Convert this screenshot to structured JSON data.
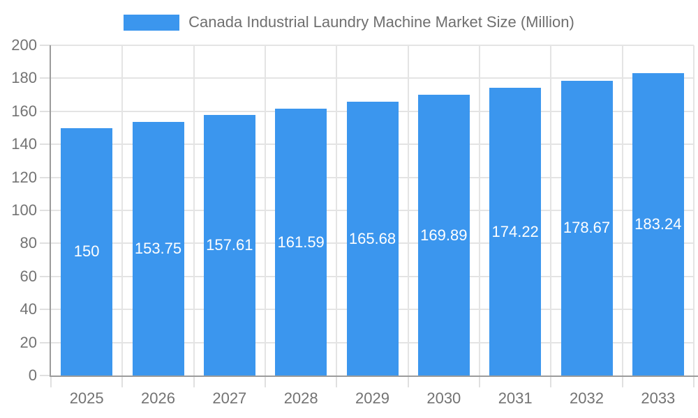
{
  "chart_data": {
    "type": "bar",
    "title": "Canada Industrial Laundry Machine Market Size (Million)",
    "series_name": "Canada Industrial Laundry Machine Market Size (Million)",
    "categories": [
      "2025",
      "2026",
      "2027",
      "2028",
      "2029",
      "2030",
      "2031",
      "2032",
      "2033"
    ],
    "values": [
      150,
      153.75,
      157.61,
      161.59,
      165.68,
      169.89,
      174.22,
      178.67,
      183.24
    ],
    "value_labels": [
      "150",
      "153.75",
      "157.61",
      "161.59",
      "165.68",
      "169.89",
      "174.22",
      "178.67",
      "183.24"
    ],
    "xlabel": "",
    "ylabel": "",
    "ylim": [
      0,
      200
    ],
    "yticks": [
      0,
      20,
      40,
      60,
      80,
      100,
      120,
      140,
      160,
      180,
      200
    ],
    "grid": true,
    "legend_position": "top",
    "value_label_position": "inside-middle"
  },
  "colors": {
    "bar": "#3B96EE",
    "grid": "#E4E4E4",
    "tick": "#E0E0E0",
    "axis": "#9B9B9B",
    "text": "#737373",
    "title": "#6F6F6F",
    "value_label": "#FFFFFF",
    "background": "#FFFFFF"
  }
}
